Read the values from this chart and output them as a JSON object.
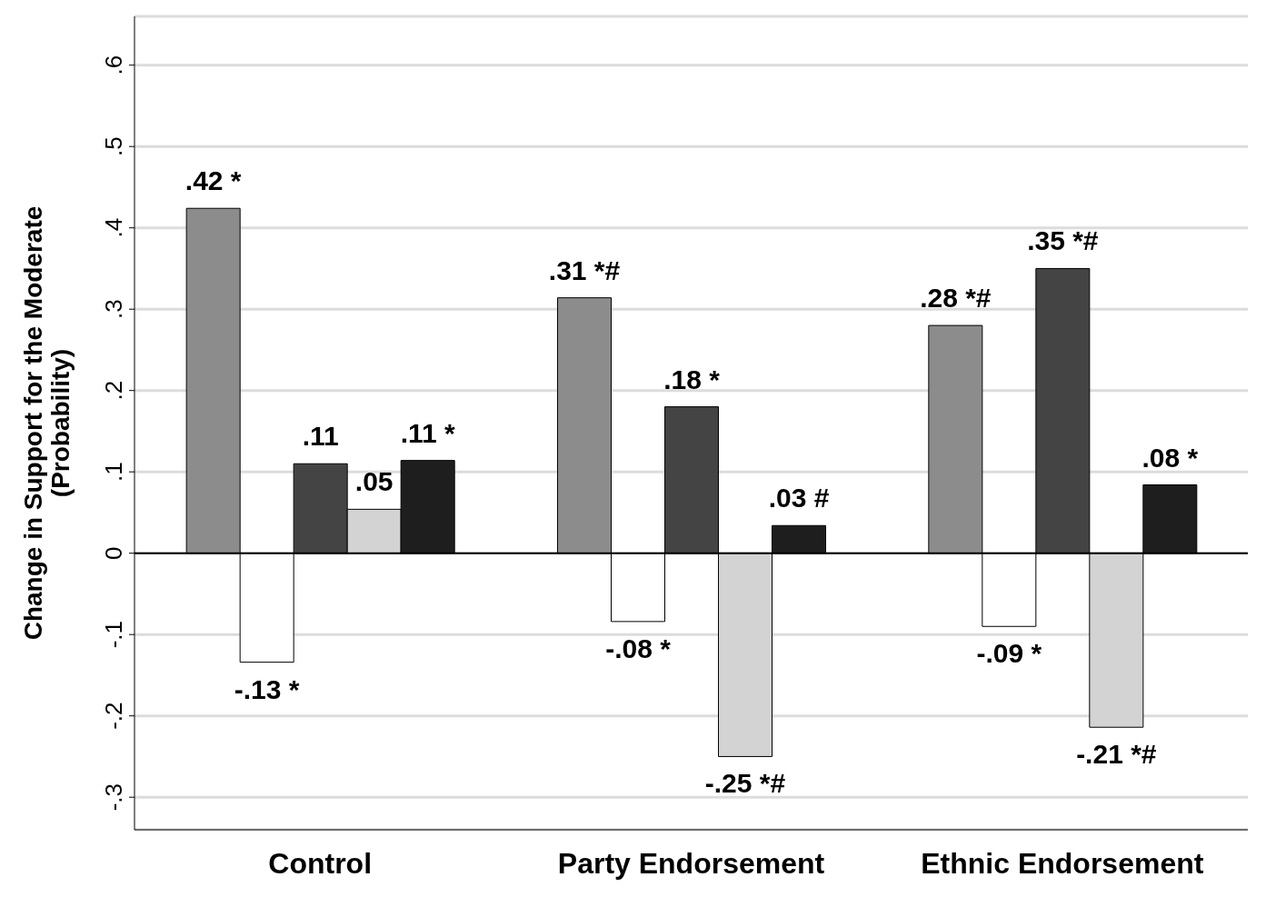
{
  "chart_data": {
    "type": "bar",
    "ylabel": "Change in Support for the Moderate\n(Probability)",
    "categories": [
      "Control",
      "Party Endorsement",
      "Ethnic Endorsement"
    ],
    "series": [
      {
        "color": "#8c8c8c",
        "values": [
          0.424,
          0.314,
          0.28
        ],
        "value_labels": [
          ".42 *",
          ".31 *#",
          ".28 *#"
        ]
      },
      {
        "color": "#ffffff",
        "values": [
          -0.134,
          -0.084,
          -0.09
        ],
        "value_labels": [
          "-.13 *",
          "-.08 *",
          "-.09 *"
        ]
      },
      {
        "color": "#444444",
        "values": [
          0.11,
          0.18,
          0.35
        ],
        "value_labels": [
          ".11",
          ".18 *",
          ".35 *#"
        ]
      },
      {
        "color": "#d3d3d3",
        "values": [
          0.054,
          -0.25,
          -0.214
        ],
        "value_labels": [
          ".05",
          "-.25 *#",
          "-.21 *#"
        ]
      },
      {
        "color": "#1e1e1e",
        "values": [
          0.114,
          0.034,
          0.084
        ],
        "value_labels": [
          ".11 *",
          ".03 #",
          ".08 *"
        ]
      }
    ],
    "ylim": [
      -0.34,
      0.66
    ],
    "yticks": [
      {
        "value": -0.3,
        "label": "-.3"
      },
      {
        "value": -0.2,
        "label": "-.2"
      },
      {
        "value": -0.1,
        "label": "-.1"
      },
      {
        "value": 0,
        "label": "0"
      },
      {
        "value": 0.1,
        "label": ".1"
      },
      {
        "value": 0.2,
        "label": ".2"
      },
      {
        "value": 0.3,
        "label": ".3"
      },
      {
        "value": 0.4,
        "label": ".4"
      },
      {
        "value": 0.5,
        "label": ".5"
      },
      {
        "value": 0.6,
        "label": ".6"
      }
    ],
    "ref_lines": [
      {
        "axis": "y",
        "value": 0,
        "color": "#000000"
      }
    ],
    "grid": "y",
    "legend": false
  }
}
